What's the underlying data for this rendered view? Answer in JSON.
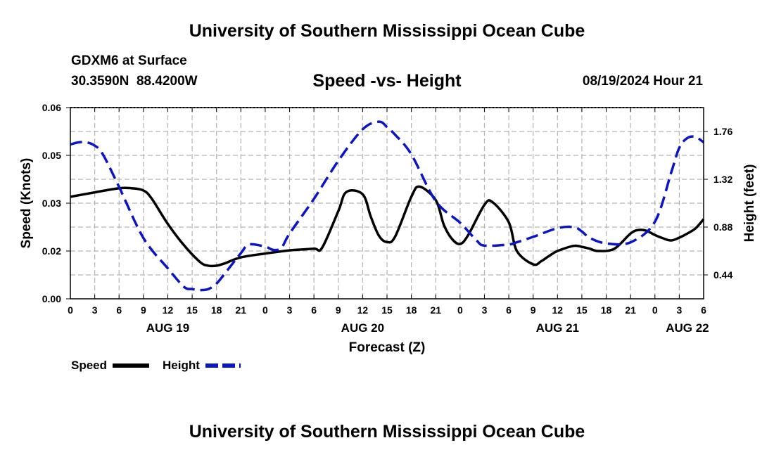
{
  "header": {
    "title": "University of Southern Mississippi Ocean Cube",
    "station": "GDXM6 at Surface",
    "coords": "30.3590N  88.4200W",
    "datetime": "08/19/2024 Hour 21"
  },
  "footer": {
    "title": "University of Southern Mississippi Ocean Cube"
  },
  "colors": {
    "speed": "#000000",
    "height": "#0a14c8",
    "grid": "#b4b4b4"
  },
  "chart_data": {
    "type": "line",
    "title": "Speed -vs- Height",
    "xlabel": "Forecast (Z)",
    "ylabel": "Speed (Knots)",
    "y2label": "Height (feet)",
    "x_unit": "hours from AUG 19 00Z",
    "xlim": [
      0,
      78
    ],
    "ylim": [
      0,
      0.06
    ],
    "y2lim": [
      0.22,
      1.98
    ],
    "x_tick_values": [
      0,
      3,
      6,
      9,
      12,
      15,
      18,
      21,
      24,
      27,
      30,
      33,
      36,
      39,
      42,
      45,
      48,
      51,
      54,
      57,
      60,
      63,
      66,
      69,
      72,
      75,
      78
    ],
    "x_tick_labels": [
      "0",
      "3",
      "6",
      "9",
      "12",
      "15",
      "18",
      "21",
      "0",
      "3",
      "6",
      "9",
      "12",
      "15",
      "18",
      "21",
      "0",
      "3",
      "6",
      "9",
      "12",
      "15",
      "18",
      "21",
      "0",
      "3",
      "6"
    ],
    "y_ticks": [
      0.0,
      0.02,
      0.03,
      0.05,
      0.06
    ],
    "y_tick_labels": [
      "0.00",
      "0.02",
      "0.03",
      "0.05",
      "0.06"
    ],
    "y_tick_positions": [
      0,
      0.015,
      0.03,
      0.045,
      0.06
    ],
    "y2_tick_labels": [
      "0.44",
      "0.88",
      "1.32",
      "1.76"
    ],
    "y2_tick_values": [
      0.44,
      0.88,
      1.32,
      1.76
    ],
    "date_labels": [
      {
        "label": "AUG 19",
        "hour": 12
      },
      {
        "label": "AUG 20",
        "hour": 36
      },
      {
        "label": "AUG 21",
        "hour": 60
      },
      {
        "label": "AUG 22",
        "hour": 76
      }
    ],
    "series": [
      {
        "name": "Speed",
        "axis": "left",
        "style": "solid",
        "x": [
          0,
          3,
          6,
          7.5,
          9,
          10,
          12,
          14,
          16,
          17,
          18,
          19,
          21,
          24,
          27,
          30,
          31,
          33,
          34,
          36,
          37,
          38,
          39,
          40,
          42,
          43,
          45,
          46,
          47,
          48,
          49,
          51,
          52,
          54,
          55,
          57,
          58,
          59,
          60,
          62,
          63,
          64,
          65,
          67,
          69,
          70,
          71,
          72,
          73,
          74,
          75,
          76,
          77,
          78
        ],
        "values": [
          0.032,
          0.0334,
          0.0347,
          0.0347,
          0.034,
          0.0315,
          0.0235,
          0.0168,
          0.0115,
          0.0104,
          0.0104,
          0.0111,
          0.013,
          0.0142,
          0.0152,
          0.0157,
          0.016,
          0.0275,
          0.0335,
          0.0328,
          0.0258,
          0.0198,
          0.0178,
          0.0195,
          0.032,
          0.0352,
          0.031,
          0.0232,
          0.0188,
          0.0172,
          0.02,
          0.0295,
          0.0303,
          0.024,
          0.015,
          0.0108,
          0.0118,
          0.0135,
          0.015,
          0.0166,
          0.0163,
          0.0157,
          0.015,
          0.0157,
          0.0205,
          0.0216,
          0.0213,
          0.02,
          0.019,
          0.0183,
          0.0192,
          0.0205,
          0.0221,
          0.025
        ]
      },
      {
        "name": "Height",
        "axis": "right",
        "style": "dashed",
        "x": [
          0,
          1,
          2,
          3,
          4,
          6,
          9,
          12,
          14,
          15,
          16,
          17,
          18,
          19,
          21,
          22,
          24,
          25,
          26,
          27,
          30,
          33,
          36,
          38,
          39,
          40,
          42,
          45,
          48,
          50,
          51,
          54,
          55,
          57,
          60,
          62,
          63,
          64,
          66,
          69,
          72,
          74,
          75,
          76,
          77,
          78
        ],
        "values": [
          1.64,
          1.66,
          1.66,
          1.63,
          1.55,
          1.25,
          0.78,
          0.5,
          0.33,
          0.31,
          0.3,
          0.31,
          0.36,
          0.45,
          0.64,
          0.72,
          0.7,
          0.67,
          0.69,
          0.82,
          1.14,
          1.49,
          1.78,
          1.85,
          1.8,
          1.73,
          1.55,
          1.12,
          0.92,
          0.76,
          0.71,
          0.72,
          0.74,
          0.79,
          0.87,
          0.88,
          0.84,
          0.78,
          0.73,
          0.74,
          0.93,
          1.38,
          1.61,
          1.7,
          1.71,
          1.66
        ]
      }
    ]
  }
}
